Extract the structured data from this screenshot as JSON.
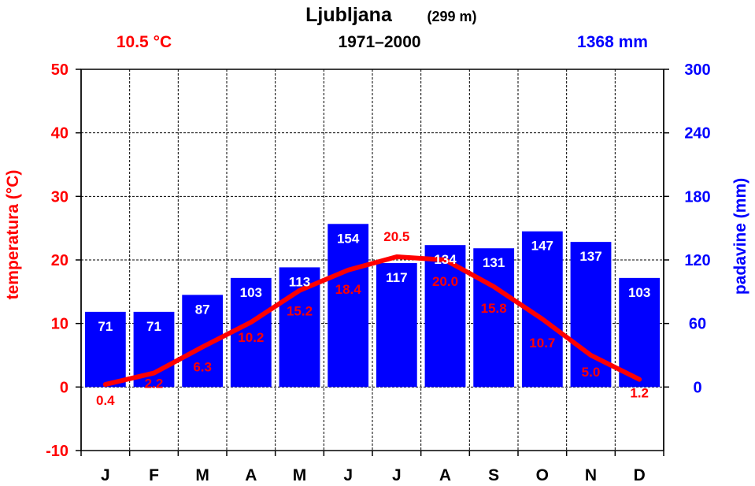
{
  "header": {
    "station": "Ljubljana",
    "elevation": "(299 m)",
    "period": "1971–2000",
    "mean_temp": "10.5 °C",
    "total_precip": "1368 mm"
  },
  "colors": {
    "temperature": "#ff0000",
    "precipitation": "#0000ff",
    "grid": "#000000"
  },
  "chart_data": {
    "type": "bar",
    "categories": [
      "J",
      "F",
      "M",
      "A",
      "M",
      "J",
      "J",
      "A",
      "S",
      "O",
      "N",
      "D"
    ],
    "series": [
      {
        "type": "bar",
        "axis": "right",
        "values": [
          71,
          71,
          87,
          103,
          113,
          154,
          117,
          134,
          131,
          147,
          137,
          103
        ],
        "labels": [
          "71",
          "71",
          "87",
          "103",
          "113",
          "154",
          "117",
          "134",
          "131",
          "147",
          "137",
          "103"
        ]
      },
      {
        "type": "line",
        "axis": "left",
        "values": [
          0.4,
          2.2,
          6.3,
          10.2,
          15.2,
          18.4,
          20.5,
          20.0,
          15.8,
          10.7,
          5.0,
          1.2
        ],
        "labels": [
          "0.4",
          "2.2",
          "6.3",
          "10.2",
          "15.2",
          "18.4",
          "20.5",
          "20.0",
          "15.8",
          "10.7",
          "5.0",
          "1.2"
        ]
      }
    ],
    "ylabel_left": "temperatura (°C)",
    "ylabel_right": "padavine (mm)",
    "ylim_left": [
      -10,
      50
    ],
    "ylim_right": [
      -60,
      300
    ],
    "yticks_left": [
      "-10",
      "0",
      "10",
      "20",
      "30",
      "40",
      "50"
    ],
    "yticks_right": [
      "0",
      "60",
      "120",
      "180",
      "240",
      "300"
    ],
    "grid": true
  }
}
